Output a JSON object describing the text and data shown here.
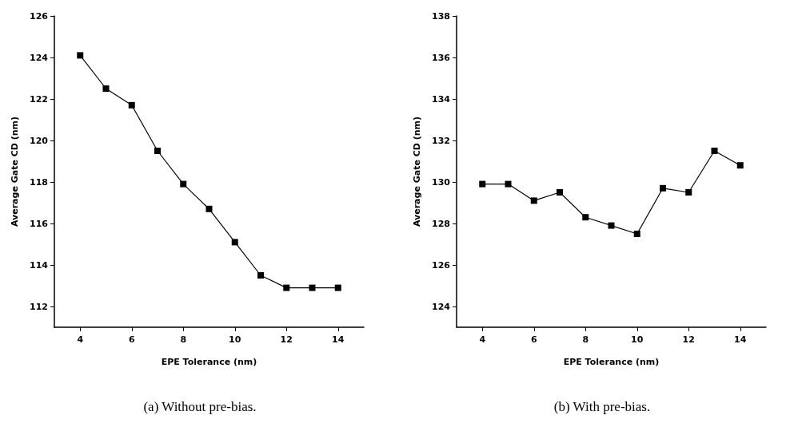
{
  "chart_data": [
    {
      "type": "line",
      "title": "(a) Without pre-bias.",
      "xlabel": "EPE Tolerance (nm)",
      "ylabel": "Average Gate CD (nm)",
      "x": [
        4,
        5,
        6,
        7,
        8,
        9,
        10,
        11,
        12,
        13,
        14
      ],
      "series": [
        {
          "color": "#000000",
          "values": [
            124.1,
            122.5,
            121.7,
            119.5,
            117.9,
            116.7,
            115.1,
            113.5,
            112.9,
            112.9,
            112.9
          ]
        }
      ],
      "xlim": [
        3,
        15
      ],
      "xticks": [
        4,
        6,
        8,
        10,
        12,
        14
      ],
      "ylim": [
        111,
        126
      ],
      "yticks": [
        112,
        114,
        116,
        118,
        120,
        122,
        124,
        126
      ],
      "marker": "square",
      "line_style": "solid"
    },
    {
      "type": "line",
      "title": "(b) With pre-bias.",
      "xlabel": "EPE Tolerance (nm)",
      "ylabel": "Average Gate CD (nm)",
      "x": [
        4,
        5,
        6,
        7,
        8,
        9,
        10,
        11,
        12,
        13,
        14
      ],
      "series": [
        {
          "color": "#000000",
          "values": [
            129.9,
            129.9,
            129.1,
            129.5,
            128.3,
            127.9,
            127.5,
            129.7,
            129.5,
            131.5,
            130.8
          ]
        }
      ],
      "xlim": [
        3,
        15
      ],
      "xticks": [
        4,
        6,
        8,
        10,
        12,
        14
      ],
      "ylim": [
        123,
        138
      ],
      "yticks": [
        124,
        126,
        128,
        130,
        132,
        134,
        136,
        138
      ],
      "marker": "square",
      "line_style": "solid"
    }
  ]
}
